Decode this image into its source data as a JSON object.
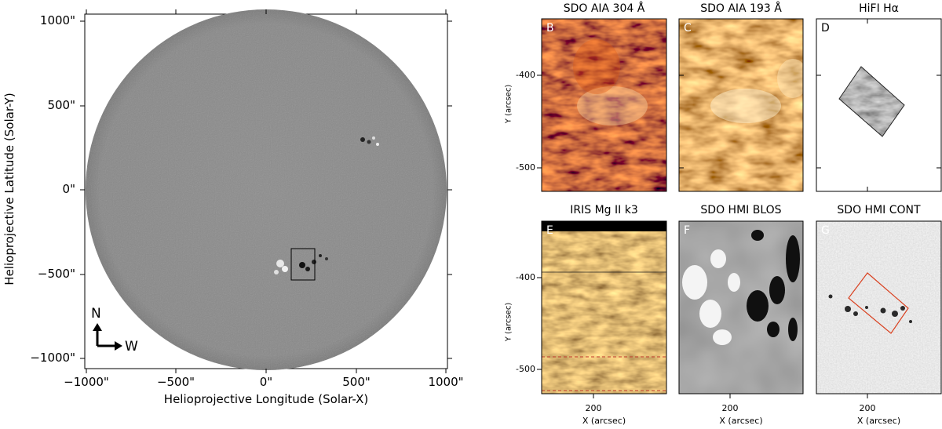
{
  "full_disk": {
    "xlabel": "Helioprojective Longitude (Solar-X)",
    "ylabel": "Helioprojective Latitude (Solar-Y)",
    "x_ticks": [
      "−1000\"",
      "−500\"",
      "0\"",
      "500\"",
      "1000\""
    ],
    "y_ticks": [
      "1000\"",
      "500\"",
      "0\"",
      "−500\"",
      "−1000\""
    ],
    "compass": {
      "north": "N",
      "west": "W"
    }
  },
  "panels": {
    "B": {
      "title": "SDO AIA 304 Å",
      "letter": "B"
    },
    "C": {
      "title": "SDO AIA 193 Å",
      "letter": "C"
    },
    "D": {
      "title": "HiFI Hα",
      "letter": "D"
    },
    "E": {
      "title": "IRIS Mg II k3",
      "letter": "E"
    },
    "F": {
      "title": "SDO HMI BLOS",
      "letter": "F"
    },
    "G": {
      "title": "SDO HMI CONT",
      "letter": "G"
    }
  },
  "small_axes": {
    "ylabel": "Y (arcsec)",
    "xlabel": "X (arcsec)",
    "top_y_ticks": [
      "-400",
      "-500"
    ],
    "bottom_y_ticks": [
      "-400",
      "-500"
    ],
    "x_tick": "200"
  },
  "colors": {
    "aia304": "#b3300a",
    "aia193": "#c9843c",
    "iris": "#8d6a22",
    "hmi_blos": "#8a8a8a",
    "hmi_cont": "#c8c8c8",
    "context_box": "#d9401f"
  }
}
